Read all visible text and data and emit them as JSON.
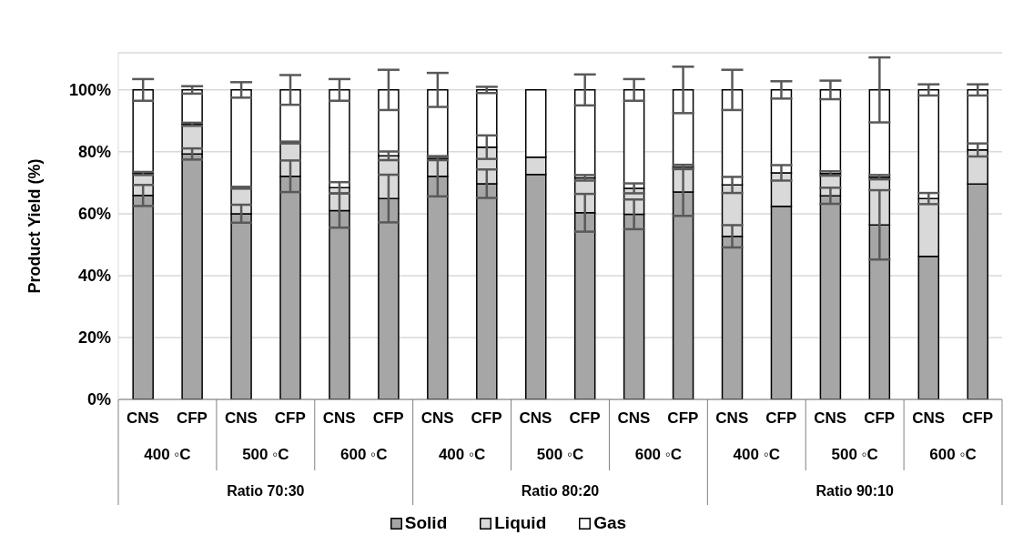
{
  "chart_data": {
    "type": "bar",
    "stacked": true,
    "ylabel": "Product Yield (%)",
    "categories": [
      "CNS",
      "CFP",
      "CNS",
      "CFP",
      "CNS",
      "CFP",
      "CNS",
      "CFP",
      "CNS",
      "CFP",
      "CNS",
      "CFP",
      "CNS",
      "CFP",
      "CNS",
      "CFP",
      "CNS",
      "CFP"
    ],
    "annotations": [
      "400 ◦C",
      "500 ◦C",
      "600 ◦C",
      "400 ◦C",
      "500 ◦C",
      "600 ◦C",
      "400 ◦C",
      "500 ◦C",
      "600 ◦C",
      "Ratio 70:30",
      "Ratio 80:20",
      "Ratio 90:10"
    ],
    "series": [
      {
        "name": "Solid",
        "color": "#a6a6a6",
        "values": [
          65.9,
          79.3,
          60.0,
          72.1,
          61.0,
          64.9,
          72.1,
          69.7,
          72.7,
          60.3,
          59.8,
          67.0,
          52.7,
          62.4,
          65.8,
          56.4,
          46.2,
          69.6
        ],
        "errors": [
          3.4,
          1.8,
          2.9,
          5.1,
          5.5,
          7.7,
          6.5,
          4.6,
          null,
          6.1,
          4.8,
          7.7,
          3.6,
          null,
          2.6,
          11.2,
          null,
          null
        ]
      },
      {
        "name": "Liquid",
        "color": "#d9d9d9",
        "values": [
          7.1,
          9.6,
          8.4,
          10.9,
          7.4,
          13.8,
          5.7,
          11.8,
          5.6,
          11.3,
          8.4,
          8.1,
          16.6,
          10.8,
          7.2,
          15.4,
          18.7,
          11.0
        ],
        "errors": [
          0.5,
          0.5,
          0.3,
          0.3,
          1.8,
          1.4,
          0.5,
          3.8,
          null,
          0.9,
          1.6,
          0.7,
          2.6,
          2.5,
          0.7,
          0.7,
          1.8,
          2.1
        ]
      },
      {
        "name": "Gas",
        "color": "#ffffff",
        "values": [
          27.0,
          11.1,
          31.6,
          17.0,
          31.6,
          21.3,
          22.2,
          18.5,
          21.7,
          28.4,
          31.8,
          24.9,
          30.7,
          26.8,
          27.0,
          28.2,
          35.1,
          19.4
        ],
        "errors": [
          3.5,
          1.2,
          2.5,
          4.8,
          3.5,
          6.5,
          5.5,
          1.0,
          null,
          5.0,
          3.5,
          7.5,
          6.5,
          2.8,
          3.0,
          10.5,
          1.8,
          1.8
        ]
      }
    ],
    "ylim": [
      0,
      112
    ],
    "yticks": [
      {
        "value": 0,
        "label": "0%"
      },
      {
        "value": 20,
        "label": "20%"
      },
      {
        "value": 40,
        "label": "40%"
      },
      {
        "value": 60,
        "label": "60%"
      },
      {
        "value": 80,
        "label": "80%"
      },
      {
        "value": 100,
        "label": "100%"
      }
    ],
    "grid": "y",
    "legend": "bottom"
  }
}
